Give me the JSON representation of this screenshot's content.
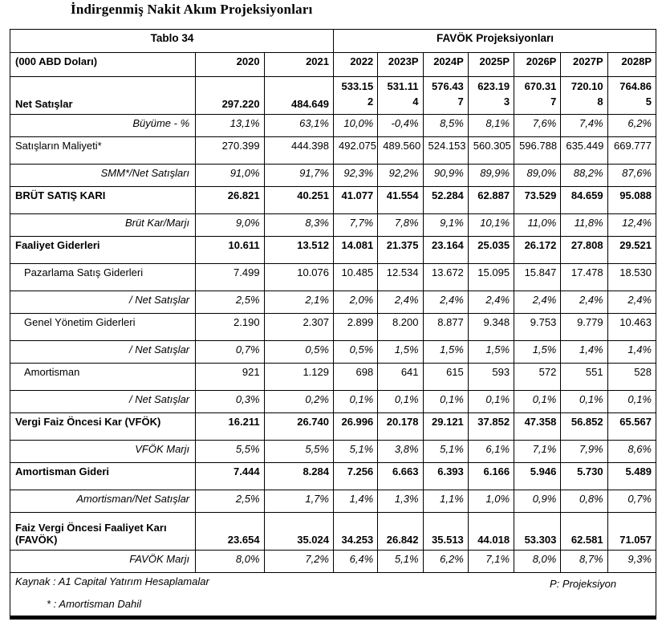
{
  "title": "İndirgenmiş Nakit Akım Projeksiyonları",
  "table": {
    "caption_left": "Tablo 34",
    "caption_right": "FAVÖK Projeksiyonları",
    "unit_header": "(000 ABD Doları)",
    "year_headers": [
      "2020",
      "2021",
      "2022",
      "2023P",
      "2024P",
      "2025P",
      "2026P",
      "2027P",
      "2028P"
    ],
    "rows": [
      {
        "label": "Net Satışlar",
        "kind": "net",
        "values": [
          "297.220",
          "484.649",
          "533.152",
          "531.114",
          "576.437",
          "623.193",
          "670.317",
          "720.108",
          "764.865"
        ]
      },
      {
        "label": "Büyüme - %",
        "kind": "ratio",
        "values": [
          "13,1%",
          "63,1%",
          "10,0%",
          "-0,4%",
          "8,5%",
          "8,1%",
          "7,6%",
          "7,4%",
          "6,2%"
        ]
      },
      {
        "label": "Satışların Maliyeti*",
        "kind": "plain",
        "values": [
          "270.399",
          "444.398",
          "492.075",
          "489.560",
          "524.153",
          "560.305",
          "596.788",
          "635.449",
          "669.777"
        ]
      },
      {
        "label": "SMM*/Net Satışları",
        "kind": "ratio",
        "values": [
          "91,0%",
          "91,7%",
          "92,3%",
          "92,2%",
          "90,9%",
          "89,9%",
          "89,0%",
          "88,2%",
          "87,6%"
        ]
      },
      {
        "label": "BRÜT SATIŞ KARI",
        "kind": "bold",
        "values": [
          "26.821",
          "40.251",
          "41.077",
          "41.554",
          "52.284",
          "62.887",
          "73.529",
          "84.659",
          "95.088"
        ]
      },
      {
        "label": "Brüt Kar/Marjı",
        "kind": "ratio",
        "values": [
          "9,0%",
          "8,3%",
          "7,7%",
          "7,8%",
          "9,1%",
          "10,1%",
          "11,0%",
          "11,8%",
          "12,4%"
        ]
      },
      {
        "label": "Faaliyet Giderleri",
        "kind": "bold",
        "values": [
          "10.611",
          "13.512",
          "14.081",
          "21.375",
          "23.164",
          "25.035",
          "26.172",
          "27.808",
          "29.521"
        ]
      },
      {
        "label": "Pazarlama Satış Giderleri",
        "kind": "indent",
        "values": [
          "7.499",
          "10.076",
          "10.485",
          "12.534",
          "13.672",
          "15.095",
          "15.847",
          "17.478",
          "18.530"
        ]
      },
      {
        "label": "/ Net Satışlar",
        "kind": "ratio",
        "values": [
          "2,5%",
          "2,1%",
          "2,0%",
          "2,4%",
          "2,4%",
          "2,4%",
          "2,4%",
          "2,4%",
          "2,4%"
        ]
      },
      {
        "label": "Genel Yönetim Giderleri",
        "kind": "indent",
        "values": [
          "2.190",
          "2.307",
          "2.899",
          "8.200",
          "8.877",
          "9.348",
          "9.753",
          "9.779",
          "10.463"
        ]
      },
      {
        "label": "/ Net Satışlar",
        "kind": "ratio",
        "values": [
          "0,7%",
          "0,5%",
          "0,5%",
          "1,5%",
          "1,5%",
          "1,5%",
          "1,5%",
          "1,4%",
          "1,4%"
        ]
      },
      {
        "label": "Amortisman",
        "kind": "indent",
        "values": [
          "921",
          "1.129",
          "698",
          "641",
          "615",
          "593",
          "572",
          "551",
          "528"
        ]
      },
      {
        "label": "/ Net Satışlar",
        "kind": "ratio",
        "values": [
          "0,3%",
          "0,2%",
          "0,1%",
          "0,1%",
          "0,1%",
          "0,1%",
          "0,1%",
          "0,1%",
          "0,1%"
        ]
      },
      {
        "label": "Vergi Faiz Öncesi Kar (VFÖK)",
        "kind": "bold",
        "values": [
          "16.211",
          "26.740",
          "26.996",
          "20.178",
          "29.121",
          "37.852",
          "47.358",
          "56.852",
          "65.567"
        ]
      },
      {
        "label": "VFÖK Marjı",
        "kind": "ratio",
        "values": [
          "5,5%",
          "5,5%",
          "5,1%",
          "3,8%",
          "5,1%",
          "6,1%",
          "7,1%",
          "7,9%",
          "8,6%"
        ]
      },
      {
        "label": "Amortisman Gideri",
        "kind": "bold",
        "values": [
          "7.444",
          "8.284",
          "7.256",
          "6.663",
          "6.393",
          "6.166",
          "5.946",
          "5.730",
          "5.489"
        ]
      },
      {
        "label": "Amortisman/Net Satışlar",
        "kind": "ratio",
        "values": [
          "2,5%",
          "1,7%",
          "1,4%",
          "1,3%",
          "1,1%",
          "1,0%",
          "0,9%",
          "0,8%",
          "0,7%"
        ]
      },
      {
        "label": "Faiz Vergi Öncesi Faaliyet Karı (FAVÖK)",
        "kind": "favok",
        "values": [
          "23.654",
          "35.024",
          "34.253",
          "26.842",
          "35.513",
          "44.018",
          "53.303",
          "62.581",
          "71.057"
        ]
      },
      {
        "label": "FAVÖK Marjı",
        "kind": "ratio",
        "values": [
          "8,0%",
          "7,2%",
          "6,4%",
          "5,1%",
          "6,2%",
          "7,1%",
          "8,0%",
          "8,7%",
          "9,3%"
        ]
      }
    ],
    "footnotes": {
      "source": "Kaynak : A1 Capital Yatırım Hesaplamalar",
      "projection": "P: Projeksiyon",
      "asterisk": "* : Amortisman Dahil"
    }
  }
}
